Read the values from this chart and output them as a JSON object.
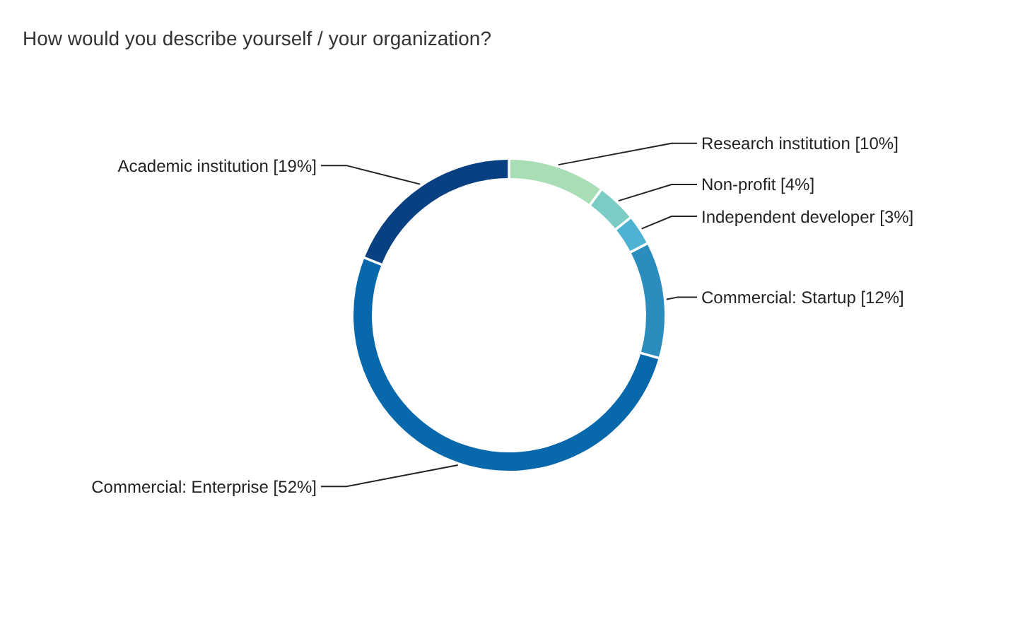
{
  "chart_data": {
    "type": "donut",
    "title": "How would you describe yourself / your organization?",
    "categories": [
      "Research institution",
      "Non-profit",
      "Independent developer",
      "Commercial: Startup",
      "Commercial: Enterprise",
      "Academic institution"
    ],
    "values": [
      10,
      4,
      3,
      12,
      52,
      19
    ],
    "value_labels": [
      "[10%]",
      "[4%]",
      "[3%]",
      "[12%]",
      "[52%]",
      "[19%]"
    ],
    "colors": [
      "#a8ddb5",
      "#7bccc4",
      "#4eb3d3",
      "#2b8cbe",
      "#0868ac",
      "#084081"
    ]
  }
}
